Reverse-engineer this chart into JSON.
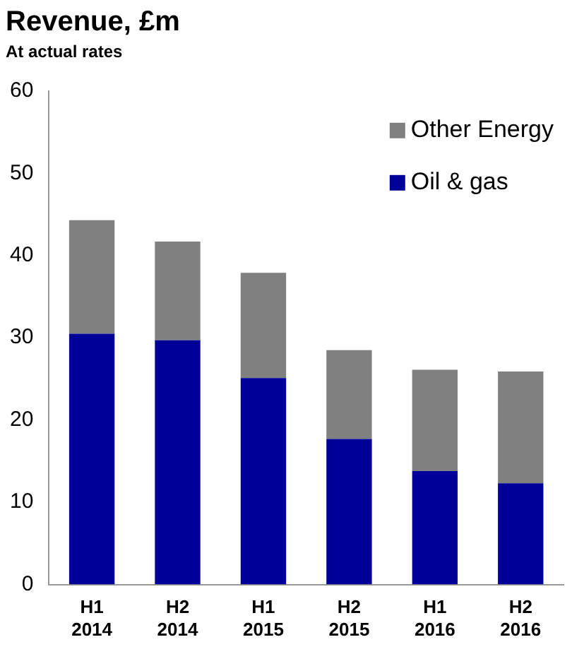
{
  "chart_data": {
    "type": "bar",
    "title": "Revenue, £m",
    "subtitle": "At actual rates",
    "stacked": true,
    "categories": [
      "H1 2014",
      "H2 2014",
      "H1 2015",
      "H2 2015",
      "H1 2016",
      "H2 2016"
    ],
    "series": [
      {
        "name": "Oil & gas",
        "color": "#000099",
        "values": [
          30.5,
          29.7,
          25.1,
          17.7,
          13.8,
          12.3
        ]
      },
      {
        "name": "Other Energy",
        "color": "#808080",
        "values": [
          13.8,
          12.0,
          12.8,
          10.8,
          12.3,
          13.6
        ]
      }
    ],
    "ylim": [
      0,
      60
    ],
    "yticks": [
      0,
      10,
      20,
      30,
      40,
      50,
      60
    ],
    "grid": false,
    "legend": "top right"
  }
}
